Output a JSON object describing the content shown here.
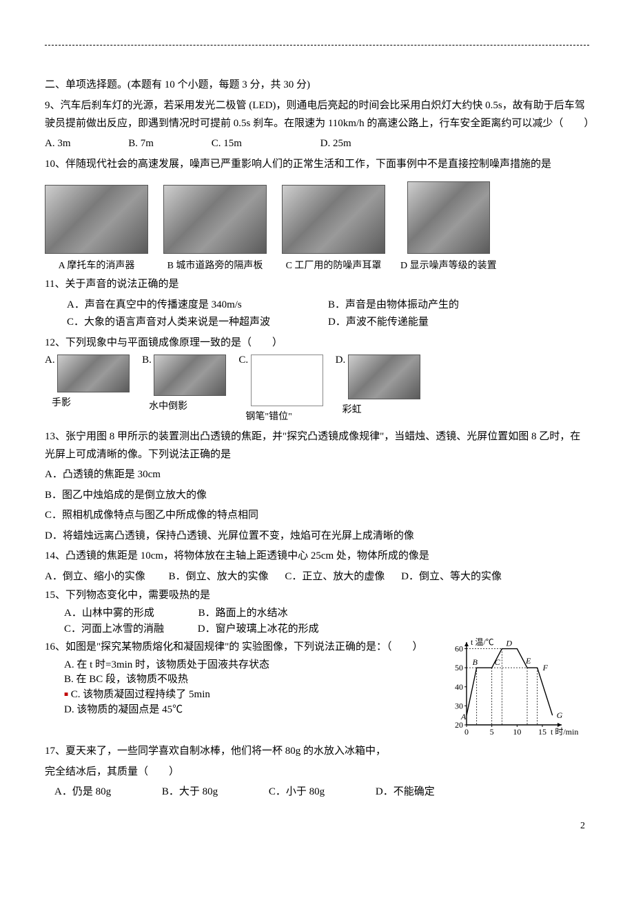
{
  "section2": {
    "title": "二、单项选择题。(本题有 10 个小题，每题 3 分，共 30 分)"
  },
  "q9": {
    "stem": "9、汽车后刹车灯的光源，若采用发光二极管 (LED)，则通电后亮起的时间会比采用白炽灯大约快 0.5s，故有助于后车驾驶员提前做出反应，即遇到情况时可提前 0.5s 刹车。在限速为 110km/h 的高速公路上，行车安全距离约可以减少（　　）",
    "A": "A. 3m",
    "B": "B. 7m",
    "C": "C. 15m",
    "D": "D. 25m"
  },
  "q10": {
    "stem": "10、伴随现代社会的高速发展，噪声已严重影响人们的正常生活和工作，下面事例中不是直接控制噪声措施的是",
    "imgs": [
      {
        "w": 150,
        "h": 100,
        "cap": "A 摩托车的消声器"
      },
      {
        "w": 150,
        "h": 100,
        "cap": "B 城市道路旁的隔声板"
      },
      {
        "w": 150,
        "h": 100,
        "cap": "C 工厂用的防噪声耳罩"
      },
      {
        "w": 120,
        "h": 105,
        "cap": "D 显示噪声等级的装置"
      }
    ]
  },
  "q11": {
    "stem": "11、关于声音的说法正确的是",
    "A": "A．声音在真空中的传播速度是 340m/s",
    "B": "B．声音是由物体振动产生的",
    "C": "C．大象的语言声音对人类来说是一种超声波",
    "D": "D．声波不能传递能量"
  },
  "q12": {
    "stem": "12、下列现象中与平面镜成像原理一致的是（　　）",
    "items": [
      {
        "label": "A.",
        "w": 120,
        "h": 60,
        "cap": "手影"
      },
      {
        "label": "B.",
        "w": 120,
        "h": 65,
        "cap": "水中倒影"
      },
      {
        "label": "C.",
        "w": 120,
        "h": 80,
        "cap": "钢笔\"错位\""
      },
      {
        "label": "D.",
        "w": 120,
        "h": 70,
        "cap": "彩虹"
      }
    ]
  },
  "q13": {
    "stem": "13、张宁用图 8 甲所示的装置测出凸透镜的焦距，并\"探究凸透镜成像规律\"，当蜡烛、透镜、光屏位置如图 8 乙时，在光屏上可成清晰的像。下列说法正确的是",
    "A": "A．凸透镜的焦距是 30cm",
    "B": "B．图乙中烛焰成的是倒立放大的像",
    "C": "C．照相机成像特点与图乙中所成像的特点相同",
    "D": "D．将蜡烛远离凸透镜，保持凸透镜、光屏位置不变，烛焰可在光屏上成清晰的像"
  },
  "q14": {
    "stem": "14、凸透镜的焦距是 10cm，将物体放在主轴上距透镜中心 25cm 处，物体所成的像是",
    "A": "A．倒立、缩小的实像",
    "B": "B．倒立、放大的实像",
    "C": "C．正立、放大的虚像",
    "D": "D．倒立、等大的实像"
  },
  "q15": {
    "stem": "15、下列物态变化中，需要吸热的是",
    "A": "A．山林中雾的形成",
    "B": "B．路面上的水结冰",
    "C": "C．河面上冰雪的消融",
    "D": "D．窗户玻璃上冰花的形成"
  },
  "q16": {
    "stem": "16、如图是\"探究某物质熔化和凝固规律\"的 实验图像，下列说法正确的是：（　　）",
    "A": "A. 在 t 时=3min 时，该物质处于固液共存状态",
    "B": "B. 在 BC 段，该物质不吸热",
    "C": "C. 该物质凝固过程持续了 5min",
    "D": "D. 该物质的凝固点是 45℃",
    "chart": {
      "type": "line",
      "xlabel": "t 时/min",
      "ylabel": "t 温/℃",
      "xlim": [
        0,
        18
      ],
      "ylim": [
        20,
        62
      ],
      "xtick": [
        0,
        5,
        10,
        15
      ],
      "ytick": [
        20,
        30,
        40,
        50,
        60
      ],
      "points": [
        [
          0,
          25
        ],
        [
          2,
          50
        ],
        [
          5,
          50
        ],
        [
          7,
          60
        ],
        [
          10,
          60
        ],
        [
          12,
          50
        ],
        [
          14,
          50
        ],
        [
          17,
          25
        ]
      ],
      "markers": {
        "A": [
          0,
          25
        ],
        "B": [
          2,
          50
        ],
        "C": [
          5,
          50
        ],
        "D": [
          7,
          60
        ],
        "E": [
          12,
          50
        ],
        "F": [
          14,
          50
        ],
        "G": [
          17,
          25
        ]
      },
      "stroke": "#000000",
      "stroke_width": 1.4,
      "axis_color": "#000000",
      "dash_color": "#000000",
      "bg": "#ffffff",
      "font_size": 12
    }
  },
  "q17": {
    "stem1": "17、夏天来了，一些同学喜欢自制冰棒，他们将一杯 80g 的水放入冰箱中，",
    "stem2": "完全结冰后，其质量（　　）",
    "A": "A．仍是 80g",
    "B": "B．大于 80g",
    "C": "C．小于 80g",
    "D": "D．不能确定"
  },
  "page_number": "2"
}
